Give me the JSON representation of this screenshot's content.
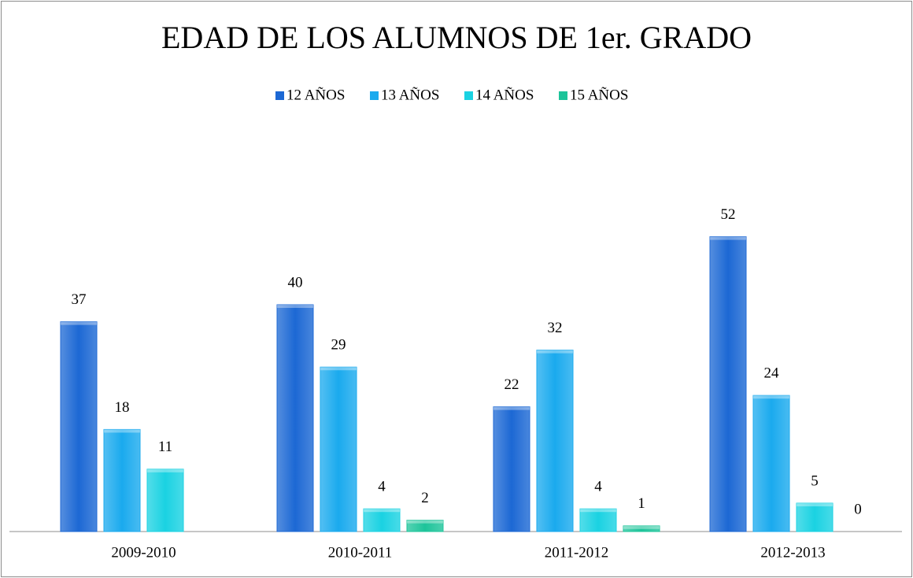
{
  "chart_data": {
    "type": "bar",
    "title": "EDAD DE LOS ALUMNOS DE 1er. GRADO",
    "categories": [
      "2009-2010",
      "2010-2011",
      "2011-2012",
      "2012-2013"
    ],
    "series": [
      {
        "name": "12 AÑOS",
        "color": "#1c68d4",
        "values": [
          37,
          40,
          22,
          52
        ]
      },
      {
        "name": "13 AÑOS",
        "color": "#1aaaee",
        "values": [
          18,
          29,
          32,
          24
        ]
      },
      {
        "name": "14 AÑOS",
        "color": "#1ad2e2",
        "values": [
          11,
          4,
          4,
          5
        ]
      },
      {
        "name": "15 AÑOS",
        "color": "#1dc49a",
        "values": [
          null,
          2,
          1,
          0
        ]
      }
    ],
    "ylim": [
      0,
      60
    ],
    "legend": "top"
  }
}
